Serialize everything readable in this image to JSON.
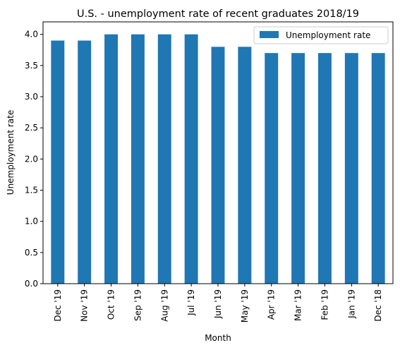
{
  "chart_data": {
    "type": "bar",
    "title": "U.S. - unemployment rate of recent graduates 2018/19",
    "xlabel": "Month",
    "ylabel": "Unemployment rate",
    "categories": [
      "Dec '19",
      "Nov '19",
      "Oct '19",
      "Sep '19",
      "Aug '19",
      "Jul '19",
      "Jun '19",
      "May '19",
      "Apr '19",
      "Mar '19",
      "Feb '19",
      "Jan '19",
      "Dec '18"
    ],
    "series": [
      {
        "name": "Unemployment rate",
        "color": "#1f77b4",
        "values": [
          3.9,
          3.9,
          4.0,
          4.0,
          4.0,
          4.0,
          3.8,
          3.8,
          3.7,
          3.7,
          3.7,
          3.7,
          3.7
        ]
      }
    ],
    "ylim": [
      0,
      4.2
    ],
    "yticks": [
      "0.0",
      "0.5",
      "1.0",
      "1.5",
      "2.0",
      "2.5",
      "3.0",
      "3.5",
      "4.0"
    ],
    "legend": "top-right",
    "grid": false
  }
}
